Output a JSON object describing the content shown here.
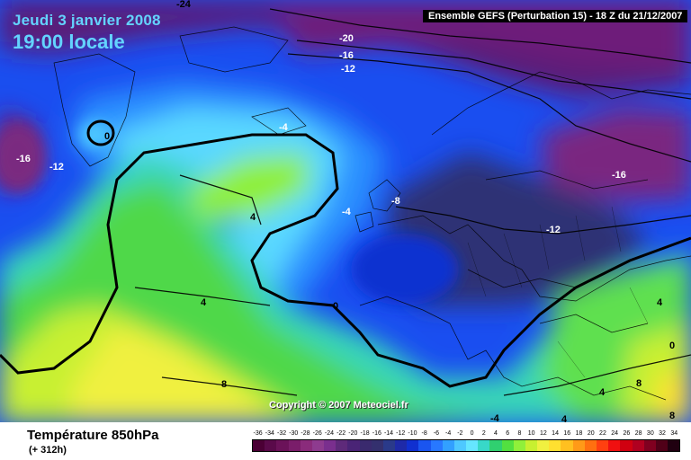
{
  "header": {
    "date": "Jeudi 3 janvier 2008",
    "time": "19:00 locale",
    "model": "Ensemble GEFS (Perturbation 15)  -  18 Z du 21/12/2007"
  },
  "map": {
    "copyright": "Copyright © 2007 Meteociel.fr",
    "contour_labels": [
      "-24",
      "-20",
      "-16",
      "-12",
      "0",
      "-16",
      "-12",
      "-4",
      "4",
      "-4",
      "-8",
      "-16",
      "-12",
      "0",
      "4",
      "4",
      "0",
      "8",
      "4",
      "8",
      "-4",
      "4",
      "8"
    ]
  },
  "footer": {
    "parameter": "Température 850hPa",
    "lead": "(+ 312h)"
  },
  "legend": {
    "values": [
      "-36",
      "-34",
      "-32",
      "-30",
      "-28",
      "-26",
      "-24",
      "-22",
      "-20",
      "-18",
      "-16",
      "-14",
      "-12",
      "-10",
      "-8",
      "-6",
      "-4",
      "-2",
      "0",
      "2",
      "4",
      "6",
      "8",
      "10",
      "12",
      "14",
      "16",
      "18",
      "20",
      "22",
      "24",
      "26",
      "28",
      "30",
      "32",
      "34"
    ],
    "colors": [
      "#4b0035",
      "#5a0a4a",
      "#6b1259",
      "#7a1d6a",
      "#8a2b7b",
      "#8e3b8f",
      "#7a2f8e",
      "#5e2a7a",
      "#4a2476",
      "#3a2a6e",
      "#34306e",
      "#2a3a8a",
      "#1e2aa8",
      "#1030d0",
      "#1a55f0",
      "#2878ff",
      "#32a0ff",
      "#4ec8ff",
      "#66e6ff",
      "#38d8c8",
      "#30d070",
      "#52e040",
      "#90f03a",
      "#c8f030",
      "#f0f040",
      "#ffe030",
      "#ffc020",
      "#ff9a18",
      "#ff7010",
      "#ff4010",
      "#f01010",
      "#d00010",
      "#b00020",
      "#800020",
      "#500018",
      "#200010"
    ]
  }
}
